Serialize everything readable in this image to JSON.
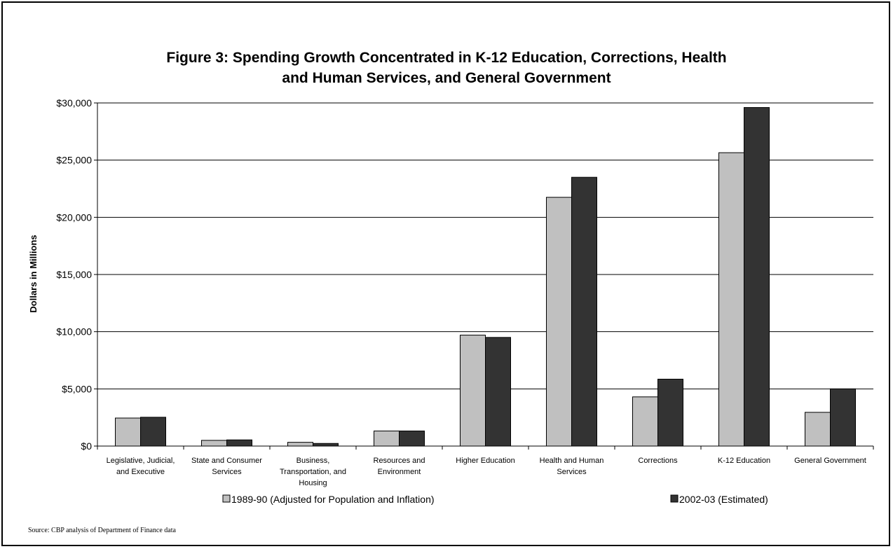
{
  "chart_data": {
    "type": "bar",
    "title_lines": [
      "Figure 3: Spending Growth Concentrated in K-12 Education, Corrections, Health",
      "and Human Services, and General Government"
    ],
    "ylabel": "Dollars in Millions",
    "ylim": [
      0,
      30000
    ],
    "yticks": [
      0,
      5000,
      10000,
      15000,
      20000,
      25000,
      30000
    ],
    "ytick_labels": [
      "$0",
      "$5,000",
      "$10,000",
      "$15,000",
      "$20,000",
      "$25,000",
      "$30,000"
    ],
    "grid": true,
    "legend_position": "bottom",
    "categories": [
      [
        "Legislative, Judicial,",
        "and Executive"
      ],
      [
        "State and Consumer",
        "Services"
      ],
      [
        "Business,",
        "Transportation, and",
        "Housing"
      ],
      [
        "Resources and",
        "Environment"
      ],
      [
        "Higher Education"
      ],
      [
        "Health and Human",
        "Services"
      ],
      [
        "Corrections"
      ],
      [
        "K-12 Education"
      ],
      [
        "General Government"
      ]
    ],
    "series": [
      {
        "name": "1989-90 (Adjusted for Population and Inflation)",
        "color": "#c0c0c0",
        "values": [
          2450,
          500,
          330,
          1320,
          9700,
          21750,
          4300,
          25650,
          2950
        ]
      },
      {
        "name": "2002-03 (Estimated)",
        "color": "#333333",
        "values": [
          2520,
          540,
          230,
          1320,
          9500,
          23500,
          5850,
          29600,
          5000
        ]
      }
    ]
  },
  "source": "Source: CBP analysis of Department of Finance data"
}
